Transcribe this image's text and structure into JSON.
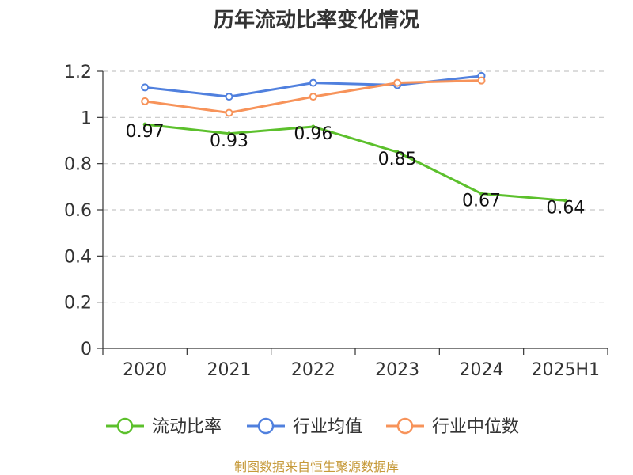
{
  "chart_data": {
    "type": "line",
    "title": "历年流动比率变化情况",
    "categories": [
      "2020",
      "2021",
      "2022",
      "2023",
      "2024",
      "2025H1"
    ],
    "ylim": [
      0,
      1.2
    ],
    "yticks": [
      "0",
      "0.2",
      "0.4",
      "0.6",
      "0.8",
      "1",
      "1.2"
    ],
    "ytick_values": [
      0,
      0.2,
      0.4,
      0.6,
      0.8,
      1.0,
      1.2
    ],
    "grid": true,
    "legend_position": "bottom",
    "series": [
      {
        "name": "流动比率",
        "color": "#5cc02c",
        "values": [
          0.97,
          0.93,
          0.96,
          0.85,
          0.67,
          0.64
        ],
        "labels": [
          "0.97",
          "0.93",
          "0.96",
          "0.85",
          "0.67",
          "0.64"
        ]
      },
      {
        "name": "行业均值",
        "color": "#5080de",
        "values": [
          1.13,
          1.09,
          1.15,
          1.14,
          1.18,
          null
        ]
      },
      {
        "name": "行业中位数",
        "color": "#f7935a",
        "values": [
          1.07,
          1.02,
          1.09,
          1.15,
          1.16,
          null
        ]
      }
    ]
  },
  "footer": {
    "source": "制图数据来自恒生聚源数据库"
  }
}
